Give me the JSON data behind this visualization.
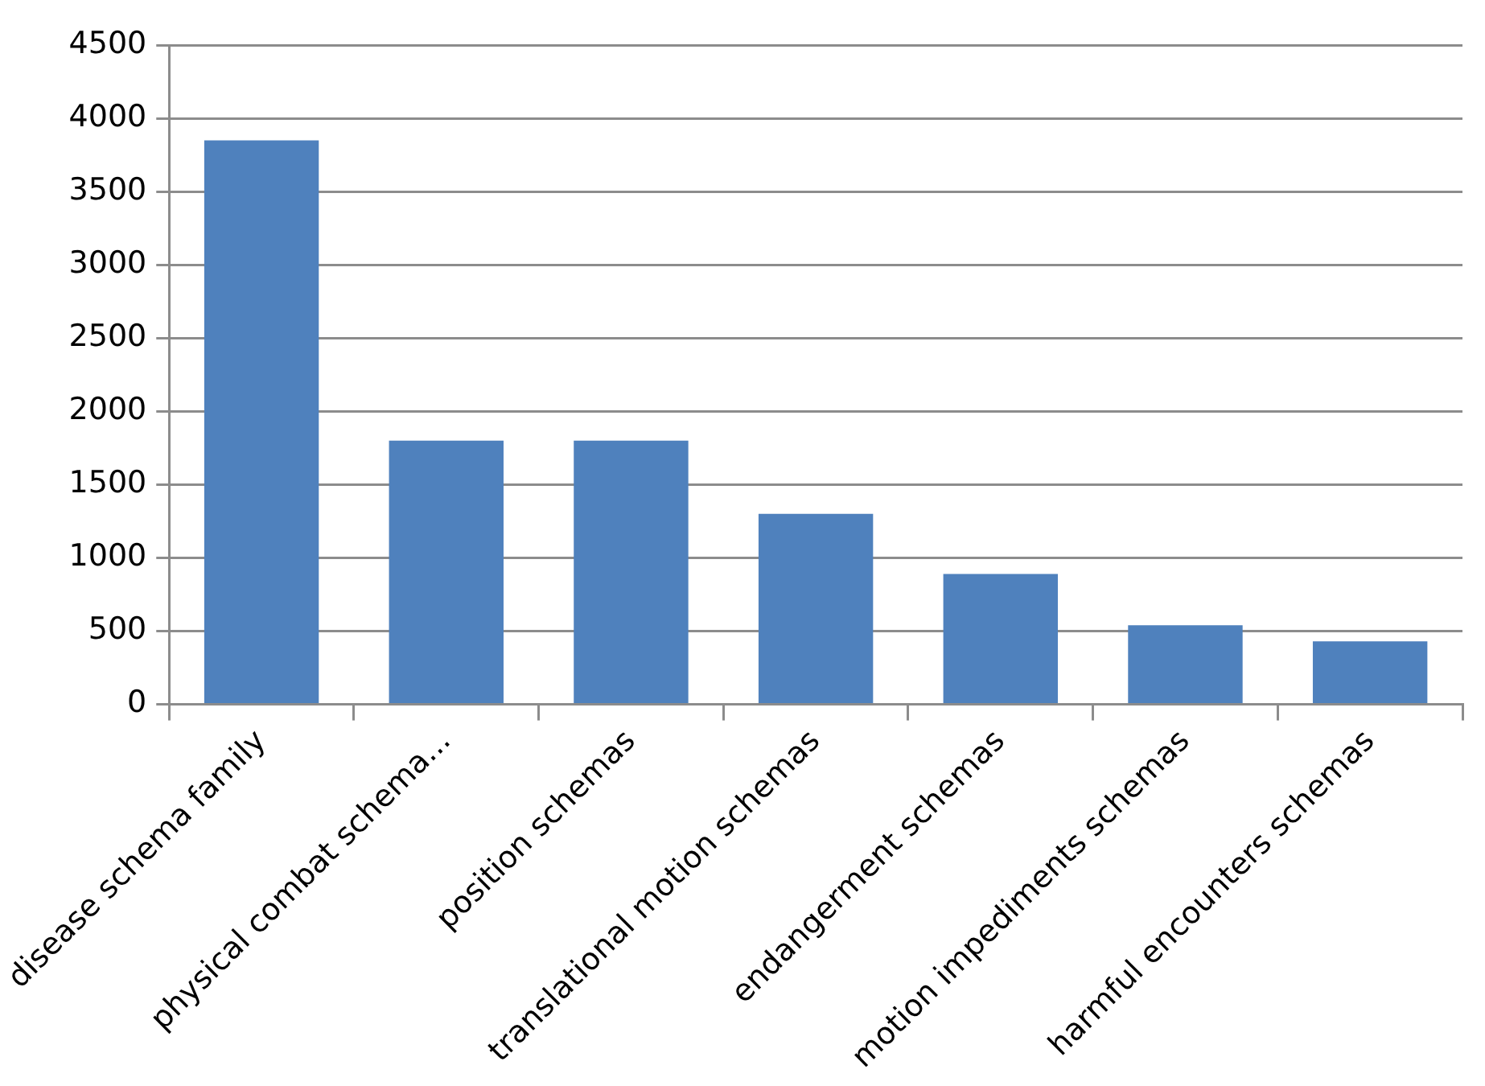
{
  "chart_data": {
    "type": "bar",
    "categories": [
      "disease schema family",
      "physical combat schema...",
      "position schemas",
      "translational motion schemas",
      "endangerment schemas",
      "motion impediments schemas",
      "harmful encounters schemas"
    ],
    "values": [
      3850,
      1800,
      1800,
      1300,
      890,
      540,
      430
    ],
    "color": "#4f81bd",
    "ylim": [
      0,
      4500
    ],
    "yticks": [
      0,
      500,
      1000,
      1500,
      2000,
      2500,
      3000,
      3500,
      4000,
      4500
    ],
    "grid": "y"
  }
}
